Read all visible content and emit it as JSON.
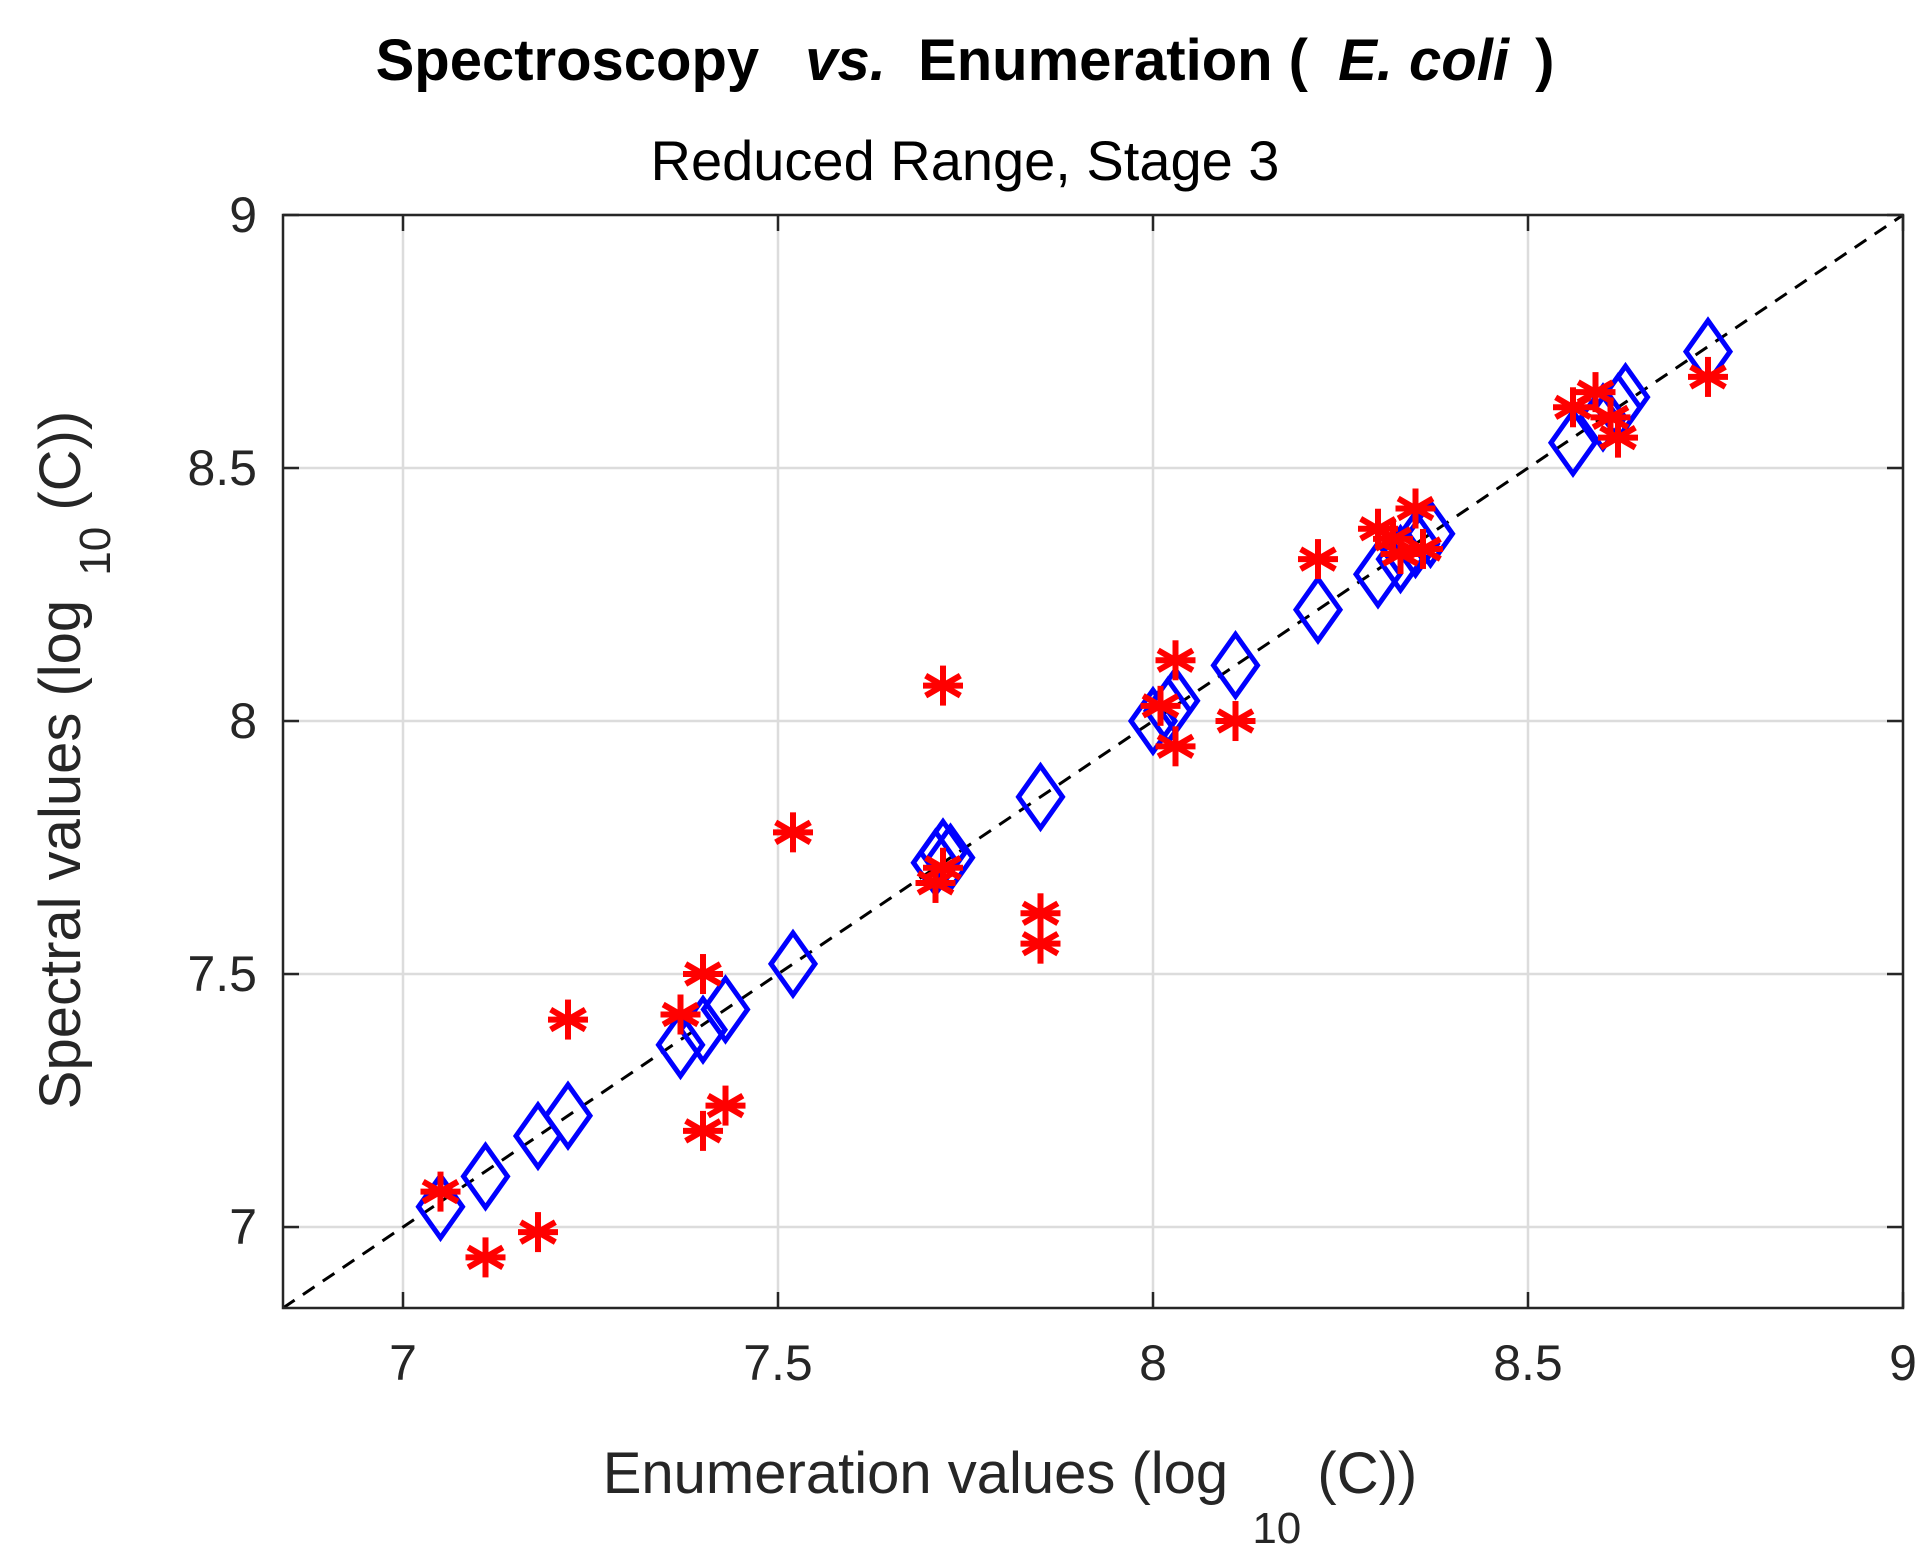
{
  "chart_data": {
    "type": "scatter",
    "title": {
      "part1": "Spectroscopy",
      "part2": "vs.",
      "part3": "Enumeration (",
      "part4": "E. coli",
      "part5": ")"
    },
    "subtitle": "Reduced Range, Stage 3",
    "xlabel": {
      "main": "Enumeration values (log",
      "sub": "10",
      "end": "(C))"
    },
    "ylabel": {
      "main": "Spectral values (log",
      "sub": "10",
      "end": "(C))"
    },
    "xlim": [
      6.84,
      9
    ],
    "ylim": [
      6.84,
      9
    ],
    "xticks": [
      7,
      7.5,
      8,
      8.5,
      9
    ],
    "yticks": [
      7,
      7.5,
      8,
      8.5,
      9
    ],
    "xtick_labels": [
      "7",
      "7.5",
      "8",
      "8.5",
      "9"
    ],
    "ytick_labels": [
      "7",
      "7.5",
      "8",
      "8.5",
      "9"
    ],
    "grid": true,
    "reference_line": {
      "style": "dashed",
      "color": "#000000",
      "slope": 1,
      "intercept": 0
    },
    "series": [
      {
        "name": "diamond",
        "marker": "diamond",
        "color": "#0000ff",
        "points": [
          [
            7.05,
            7.04
          ],
          [
            7.11,
            7.1
          ],
          [
            7.18,
            7.18
          ],
          [
            7.22,
            7.22
          ],
          [
            7.37,
            7.36
          ],
          [
            7.4,
            7.39
          ],
          [
            7.43,
            7.43
          ],
          [
            7.52,
            7.52
          ],
          [
            7.71,
            7.72
          ],
          [
            7.72,
            7.74
          ],
          [
            7.73,
            7.73
          ],
          [
            7.85,
            7.85
          ],
          [
            8.0,
            8.0
          ],
          [
            8.02,
            8.02
          ],
          [
            8.03,
            8.04
          ],
          [
            8.11,
            8.11
          ],
          [
            8.22,
            8.22
          ],
          [
            8.3,
            8.29
          ],
          [
            8.33,
            8.32
          ],
          [
            8.35,
            8.35
          ],
          [
            8.37,
            8.37
          ],
          [
            8.56,
            8.55
          ],
          [
            8.6,
            8.6
          ],
          [
            8.62,
            8.62
          ],
          [
            8.63,
            8.64
          ],
          [
            8.74,
            8.73
          ]
        ]
      },
      {
        "name": "asterisk",
        "marker": "asterisk",
        "color": "#ff0000",
        "points": [
          [
            7.05,
            7.07
          ],
          [
            7.11,
            6.94
          ],
          [
            7.18,
            6.99
          ],
          [
            7.22,
            7.41
          ],
          [
            7.37,
            7.42
          ],
          [
            7.4,
            7.5
          ],
          [
            7.4,
            7.19
          ],
          [
            7.43,
            7.24
          ],
          [
            7.52,
            7.78
          ],
          [
            7.71,
            7.68
          ],
          [
            7.72,
            7.71
          ],
          [
            7.72,
            8.07
          ],
          [
            7.85,
            7.62
          ],
          [
            7.85,
            7.56
          ],
          [
            8.01,
            8.03
          ],
          [
            8.03,
            8.12
          ],
          [
            8.03,
            7.95
          ],
          [
            8.11,
            8.0
          ],
          [
            8.22,
            8.32
          ],
          [
            8.3,
            8.38
          ],
          [
            8.32,
            8.36
          ],
          [
            8.33,
            8.33
          ],
          [
            8.35,
            8.42
          ],
          [
            8.36,
            8.34
          ],
          [
            8.56,
            8.62
          ],
          [
            8.59,
            8.65
          ],
          [
            8.61,
            8.6
          ],
          [
            8.62,
            8.56
          ],
          [
            8.74,
            8.68
          ]
        ]
      }
    ]
  }
}
